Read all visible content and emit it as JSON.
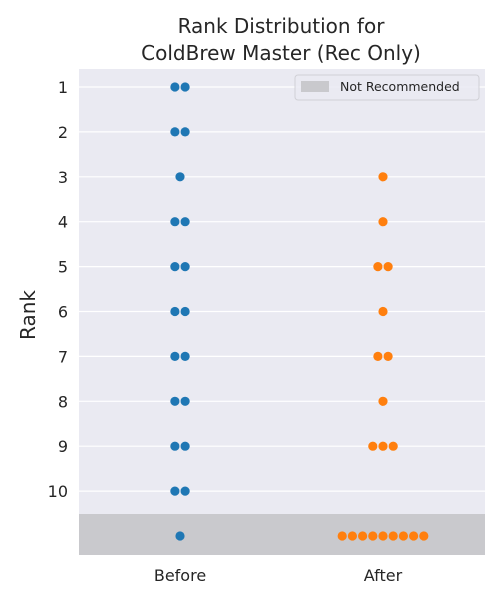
{
  "chart_data": {
    "type": "scatter",
    "subtype": "swarm",
    "title": "Rank Distribution for\nColdBrew Master (Rec Only)",
    "xlabel": "",
    "ylabel": "Rank",
    "categories": [
      "Before",
      "After"
    ],
    "y_ticks": [
      1,
      2,
      3,
      4,
      5,
      6,
      7,
      8,
      9,
      10
    ],
    "y_inverted": true,
    "grid": true,
    "legend": {
      "placement": "top-right",
      "entries": [
        "Not Recommended"
      ]
    },
    "not_recommended_region": {
      "from_rank": 10.5,
      "value_plotted_at": 11
    },
    "colors": {
      "background": "#EAEAF2",
      "grid": "#FFFFFF",
      "shade": "#C9C9CD",
      "Before": "#1F77B4",
      "After": "#FF7F0E"
    },
    "series": [
      {
        "name": "Before",
        "points": [
          {
            "rank": 1,
            "count": 2
          },
          {
            "rank": 2,
            "count": 2
          },
          {
            "rank": 3,
            "count": 1
          },
          {
            "rank": 4,
            "count": 2
          },
          {
            "rank": 5,
            "count": 2
          },
          {
            "rank": 6,
            "count": 2
          },
          {
            "rank": 7,
            "count": 2
          },
          {
            "rank": 8,
            "count": 2
          },
          {
            "rank": 9,
            "count": 2
          },
          {
            "rank": 10,
            "count": 2
          },
          {
            "rank": "Not Recommended",
            "count": 1
          }
        ]
      },
      {
        "name": "After",
        "points": [
          {
            "rank": 3,
            "count": 1
          },
          {
            "rank": 4,
            "count": 1
          },
          {
            "rank": 5,
            "count": 2
          },
          {
            "rank": 6,
            "count": 1
          },
          {
            "rank": 7,
            "count": 2
          },
          {
            "rank": 8,
            "count": 1
          },
          {
            "rank": 9,
            "count": 3
          },
          {
            "rank": "Not Recommended",
            "count": 9
          }
        ]
      }
    ]
  }
}
